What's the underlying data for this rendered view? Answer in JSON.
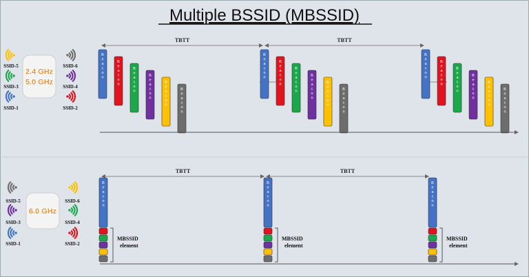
{
  "title": "Multiple BSSID (MBSSID)",
  "beacon_label": "Beacon",
  "tbtt_label": "TBTT",
  "top": {
    "bands": [
      "2.4 GHz",
      "5.0 GHz"
    ],
    "ssids_left": [
      "SSID-5",
      "SSID-3",
      "SSID-1"
    ],
    "ssids_right": [
      "SSID-6",
      "SSID-4",
      "SSID-2"
    ]
  },
  "bottom": {
    "bands": [
      "6.0 GHz"
    ],
    "ssids_left": [
      "SSID-5",
      "SSID-3",
      "SSID-1"
    ],
    "ssids_right": [
      "SSID-6",
      "SSID-4",
      "SSID-2"
    ],
    "element_label": [
      "MBSSID",
      "element"
    ]
  }
}
